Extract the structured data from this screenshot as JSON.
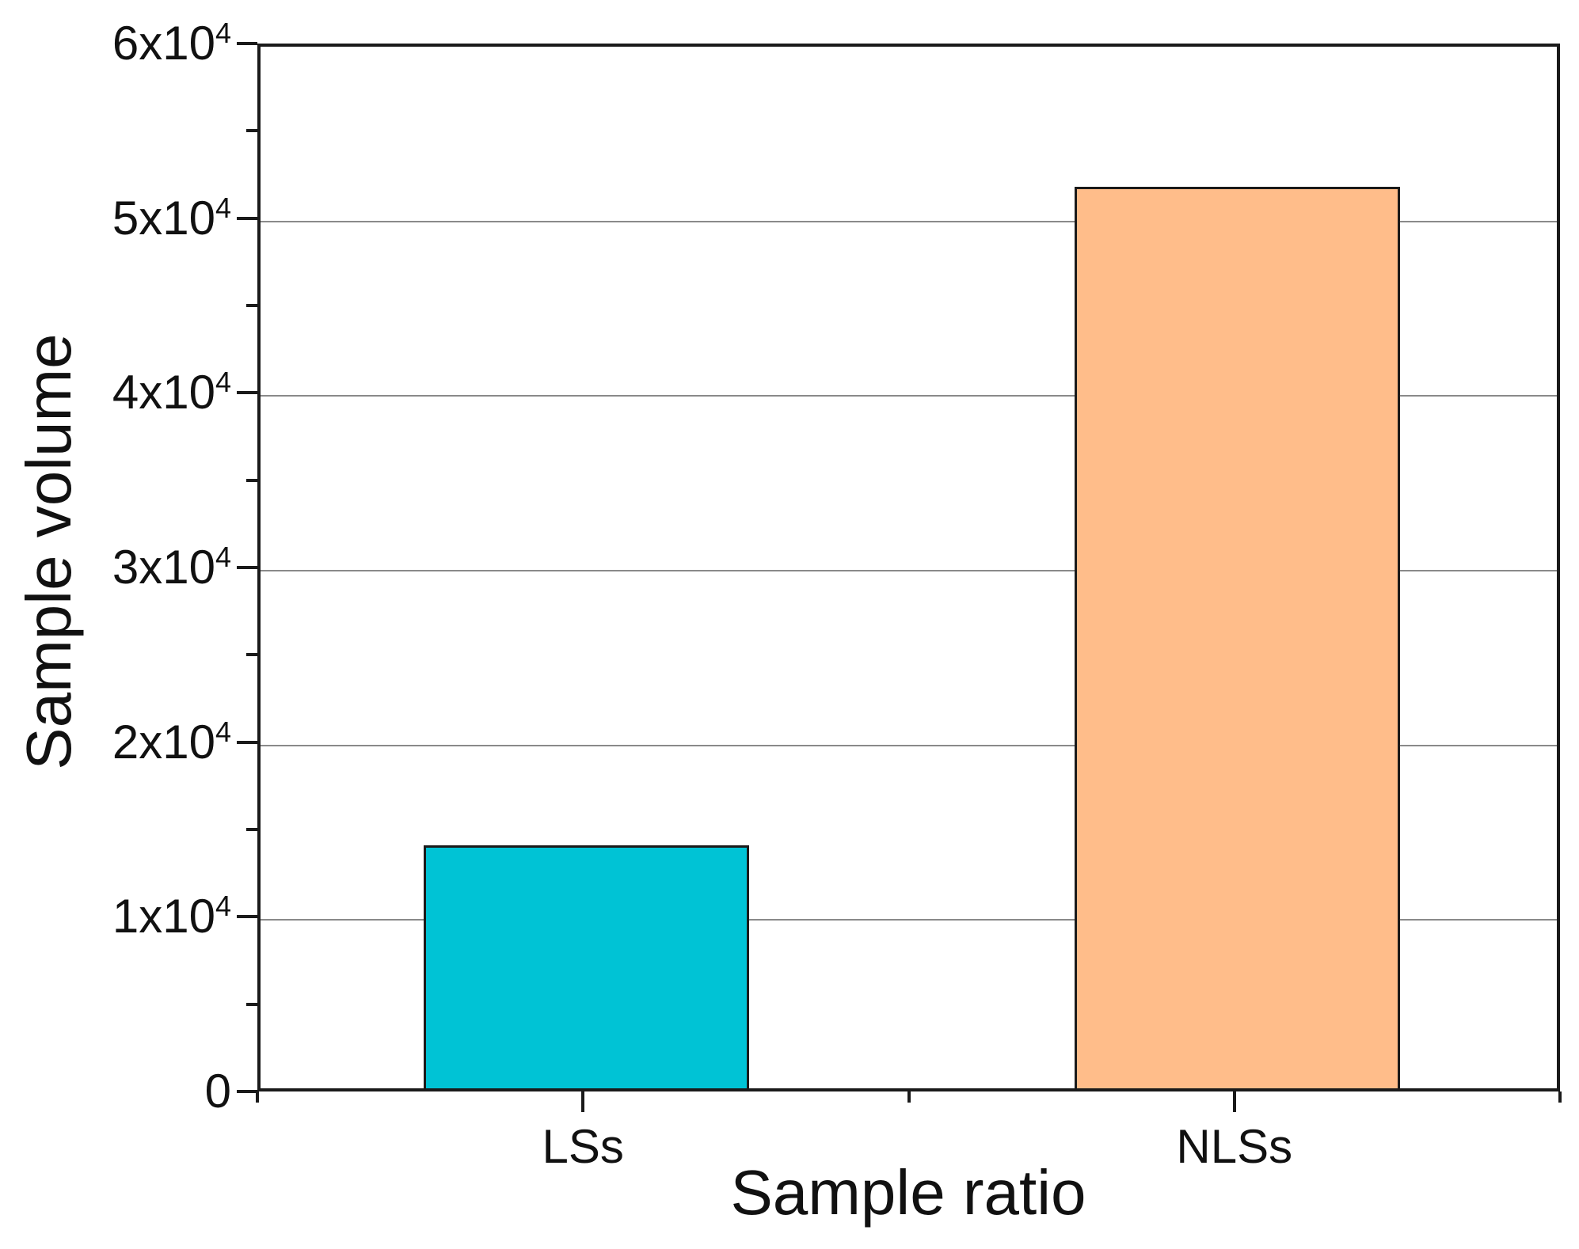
{
  "chart_data": {
    "type": "bar",
    "title": "",
    "xlabel": "Sample ratio",
    "ylabel": "Sample volume",
    "categories": [
      "LSs",
      "NLSs"
    ],
    "values": [
      13900,
      51600
    ],
    "series": [
      {
        "name": "Sample volume",
        "values": [
          13900,
          51600
        ]
      }
    ],
    "ylim": [
      0,
      60000
    ],
    "y_major_ticks": [
      {
        "value": 0,
        "base": "0",
        "sup": ""
      },
      {
        "value": 10000,
        "base": "1x10",
        "sup": "4"
      },
      {
        "value": 20000,
        "base": "2x10",
        "sup": "4"
      },
      {
        "value": 30000,
        "base": "3x10",
        "sup": "4"
      },
      {
        "value": 40000,
        "base": "4x10",
        "sup": "4"
      },
      {
        "value": 50000,
        "base": "5x10",
        "sup": "4"
      },
      {
        "value": 60000,
        "base": "6x10",
        "sup": "4"
      }
    ],
    "y_minor_tick_values": [
      5000,
      15000,
      25000,
      35000,
      45000,
      55000
    ],
    "grid": {
      "show": true,
      "values": [
        10000,
        20000,
        30000,
        40000,
        50000
      ],
      "color": "#8a8a8a"
    },
    "legend": {
      "show": false
    },
    "colors": {
      "bars": [
        "#00c3d5",
        "#ffbd8a"
      ],
      "bar_edge": "#1a1a1a",
      "axis": "#1a1a1a",
      "text": "#111111",
      "background": "#ffffff"
    }
  }
}
